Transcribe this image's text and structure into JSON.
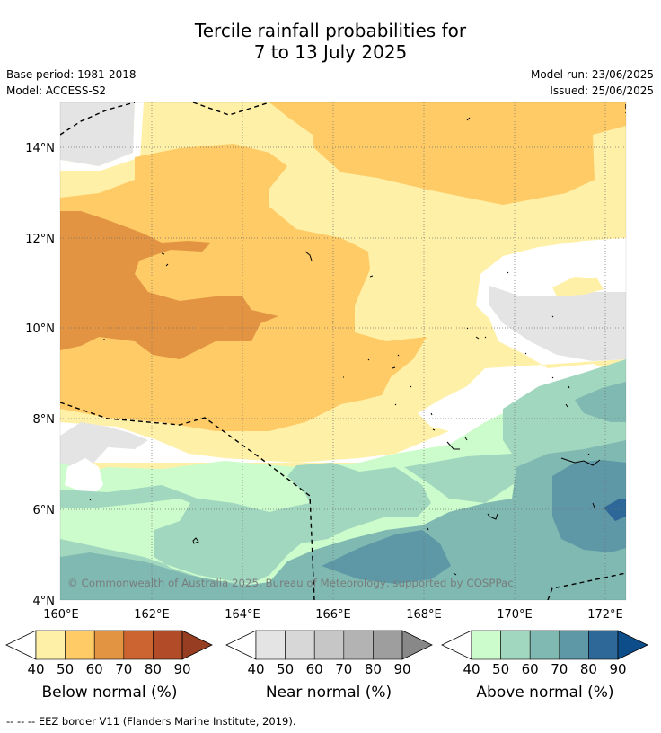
{
  "title": {
    "line1": "Tercile rainfall probabilities for",
    "line2": "7 to 13 July 2025"
  },
  "info": {
    "base_period": "Base period: 1981-2018",
    "model": "Model: ACCESS-S2",
    "model_run": "Model run: 23/06/2025",
    "issued": "Issued: 25/06/2025"
  },
  "map": {
    "lat_labels": [
      "14°N",
      "12°N",
      "10°N",
      "8°N",
      "6°N",
      "4°N"
    ],
    "lon_labels": [
      "160°E",
      "162°E",
      "164°E",
      "166°E",
      "168°E",
      "170°E",
      "172°E"
    ],
    "copyright": "© Commonwealth of Australia 2025, Bureau of Meteorology, supported by COSPPac"
  },
  "colorbars": {
    "below": {
      "title": "Below normal (%)",
      "ticks": [
        "40",
        "50",
        "60",
        "70",
        "80",
        "90"
      ],
      "colors": [
        "#fff0a8",
        "#fecb66",
        "#e29442",
        "#cc6432",
        "#b24c28",
        "#973d22"
      ]
    },
    "near": {
      "title": "Near normal (%)",
      "ticks": [
        "40",
        "50",
        "60",
        "70",
        "80",
        "90"
      ],
      "colors": [
        "#e4e4e4",
        "#d7d7d7",
        "#c6c6c6",
        "#b3b3b3",
        "#9e9e9e",
        "#888888"
      ]
    },
    "above": {
      "title": "Above normal (%)",
      "ticks": [
        "40",
        "50",
        "60",
        "70",
        "80",
        "90"
      ],
      "colors": [
        "#ccfccc",
        "#a2d7bf",
        "#80b9b2",
        "#5e98a6",
        "#2e6898",
        "#0d4d8a"
      ]
    }
  },
  "footnote": "--  --  -- EEZ border V11 (Flanders Marine Institute, 2019)."
}
